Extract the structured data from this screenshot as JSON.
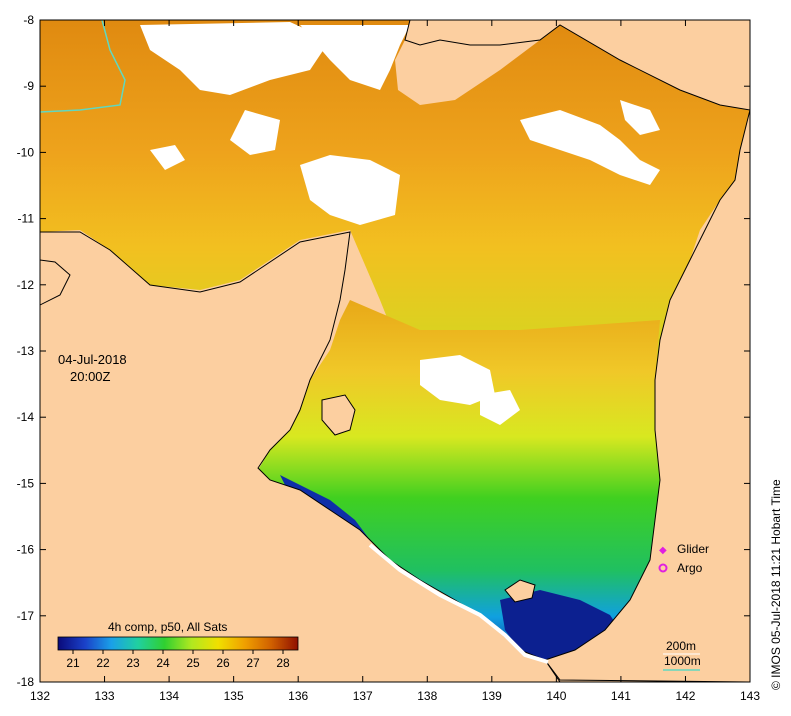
{
  "map": {
    "date": "04-Jul-2018",
    "time": "20:00Z",
    "credit": "© IMOS 05-Jul-2018 11:21 Hobart Time",
    "lon_ticks": [
      "132",
      "133",
      "134",
      "135",
      "136",
      "137",
      "138",
      "139",
      "140",
      "141",
      "142",
      "143"
    ],
    "lat_ticks": [
      "-8",
      "-9",
      "-10",
      "-11",
      "-12",
      "-13",
      "-14",
      "-15",
      "-16",
      "-17",
      "-18"
    ],
    "lon_range": [
      132,
      143
    ],
    "lat_range": [
      -18,
      -8
    ]
  },
  "colorbar": {
    "title": "4h comp, p50, All Sats",
    "ticks": [
      "21",
      "22",
      "23",
      "24",
      "25",
      "26",
      "27",
      "28"
    ],
    "range": [
      20.5,
      28.5
    ],
    "colors": [
      "#0a0a7a",
      "#1a40c8",
      "#1aa0e8",
      "#20d0a0",
      "#30d030",
      "#b0e820",
      "#f0e000",
      "#f0a000",
      "#d06000",
      "#901000"
    ]
  },
  "legend": {
    "glider_label": "Glider",
    "argo_label": "Argo",
    "glider_color": "#e020e0",
    "argo_color": "#e020e0"
  },
  "isobaths": {
    "label_200m": "200m",
    "label_1000m": "1000m",
    "color_1000m": "#60d8c0"
  },
  "colors": {
    "land": "#fccfa0",
    "no_data": "#ffffff",
    "coast": "#000000"
  }
}
